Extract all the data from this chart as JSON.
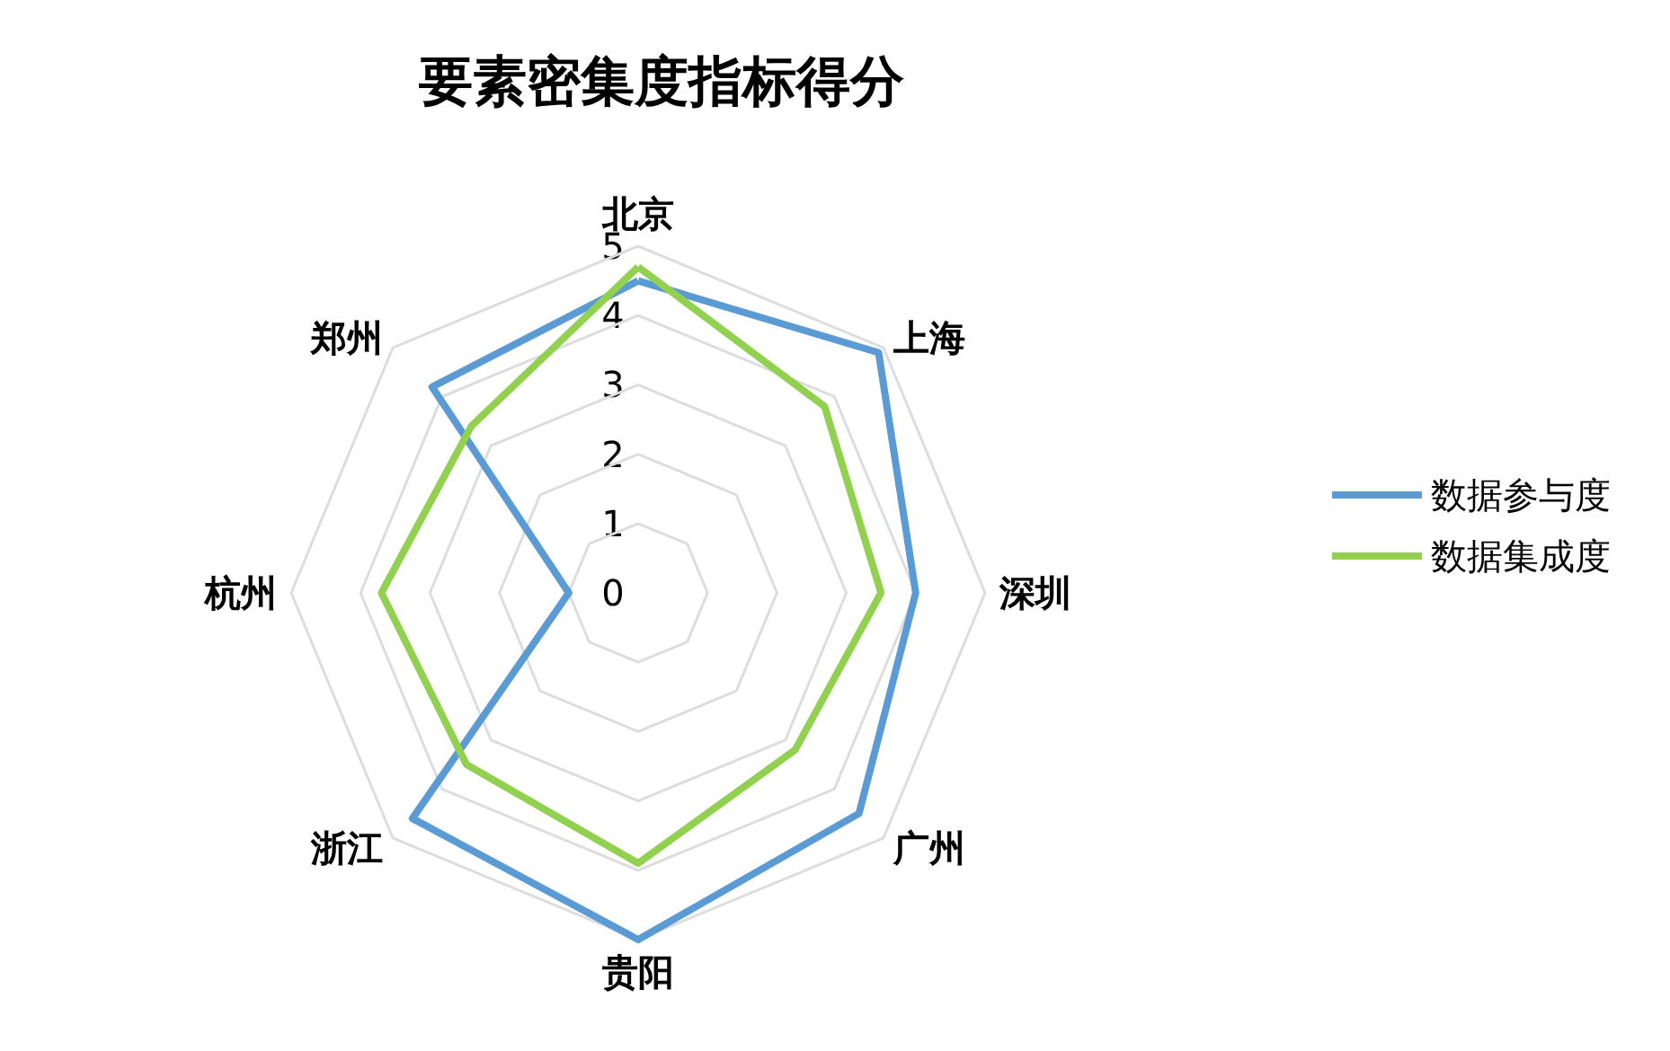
{
  "chart_data": {
    "type": "radar",
    "title": "要素密集度指标得分",
    "categories": [
      "北京",
      "上海",
      "深圳",
      "广州",
      "贵阳",
      "浙江",
      "杭州",
      "郑州"
    ],
    "series": [
      {
        "name": "数据参与度",
        "color": "#5b9bd5",
        "values": [
          4.5,
          4.9,
          4.0,
          4.5,
          5.0,
          4.6,
          1.0,
          4.2
        ]
      },
      {
        "name": "数据集成度",
        "color": "#92d050",
        "values": [
          4.7,
          3.8,
          3.5,
          3.2,
          3.9,
          3.5,
          3.7,
          3.4
        ]
      }
    ],
    "ylim": [
      0,
      5
    ],
    "yticks": [
      0,
      1,
      2,
      3,
      4,
      5
    ],
    "grid": true,
    "legend": "right",
    "marker": "none",
    "line_style": "solid"
  }
}
